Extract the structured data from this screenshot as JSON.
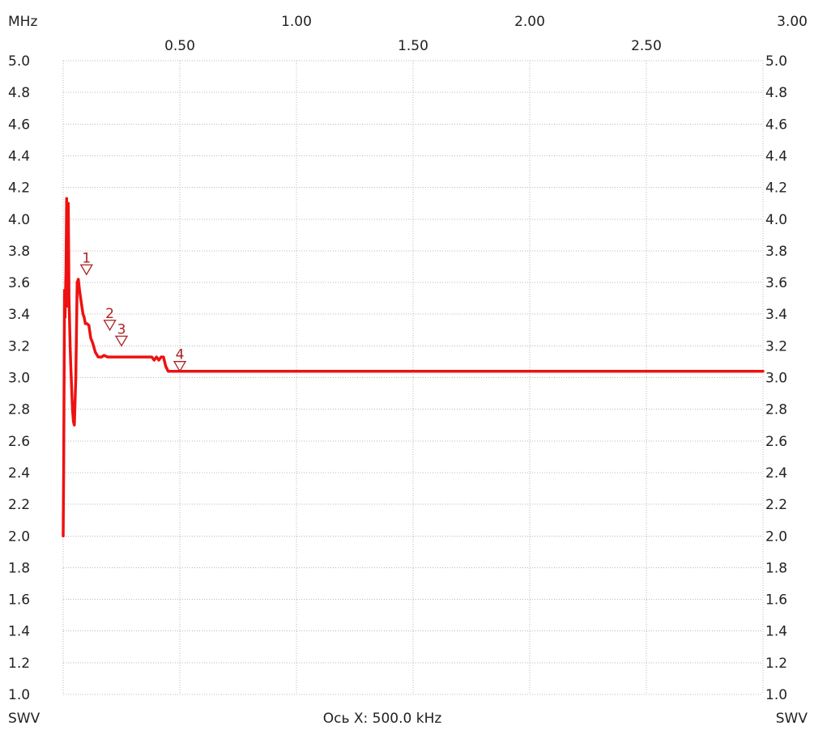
{
  "chart_data": {
    "type": "line",
    "x_unit_label": "MHz",
    "x_axis_note": "Ось X: 500.0 kHz",
    "ylabel_left": "SWV",
    "ylabel_right": "SWV",
    "xlim": [
      0.0,
      3.0
    ],
    "ylim": [
      1.0,
      5.0
    ],
    "grid": true,
    "x_ticks_top_row": [
      "1.00",
      "2.00",
      "3.00"
    ],
    "x_ticks_bottom_row": [
      "0.50",
      "1.50",
      "2.50"
    ],
    "y_ticks": [
      "5.0",
      "4.8",
      "4.6",
      "4.4",
      "4.2",
      "4.0",
      "3.8",
      "3.6",
      "3.4",
      "3.2",
      "3.0",
      "2.8",
      "2.6",
      "2.4",
      "2.2",
      "2.0",
      "1.8",
      "1.6",
      "1.4",
      "1.2",
      "1.0"
    ],
    "trace_color": "#ee1111",
    "marker_color": "#aa2222",
    "series": [
      {
        "x": [
          0.0,
          0.002,
          0.006,
          0.008,
          0.012,
          0.015,
          0.018,
          0.022,
          0.025,
          0.03,
          0.032,
          0.037,
          0.04,
          0.044,
          0.048,
          0.054,
          0.06,
          0.065,
          0.07,
          0.075,
          0.08,
          0.085,
          0.09,
          0.095,
          0.097,
          0.102,
          0.11,
          0.118,
          0.126,
          0.138,
          0.15,
          0.165,
          0.175,
          0.19,
          0.2,
          0.21,
          0.22,
          0.24,
          0.26,
          0.28,
          0.3,
          0.32,
          0.34,
          0.36,
          0.38,
          0.39,
          0.4,
          0.41,
          0.42,
          0.43,
          0.44,
          0.45,
          0.47,
          0.5,
          0.7,
          1.0,
          1.5,
          2.0,
          2.5,
          3.0
        ],
        "y": [
          2.0,
          2.42,
          3.55,
          3.38,
          3.68,
          4.13,
          3.45,
          4.1,
          3.5,
          3.2,
          3.1,
          2.9,
          2.8,
          2.72,
          2.7,
          3.0,
          3.6,
          3.62,
          3.55,
          3.5,
          3.45,
          3.4,
          3.38,
          3.34,
          3.34,
          3.34,
          3.33,
          3.25,
          3.22,
          3.16,
          3.13,
          3.13,
          3.14,
          3.13,
          3.13,
          3.13,
          3.13,
          3.13,
          3.13,
          3.13,
          3.13,
          3.13,
          3.13,
          3.13,
          3.13,
          3.11,
          3.13,
          3.11,
          3.13,
          3.13,
          3.07,
          3.04,
          3.04,
          3.04,
          3.04,
          3.04,
          3.04,
          3.04,
          3.04,
          3.04
        ]
      }
    ],
    "markers": [
      {
        "label": "1",
        "x": 0.1,
        "y": 3.65
      },
      {
        "label": "2",
        "x": 0.2,
        "y": 3.3
      },
      {
        "label": "3",
        "x": 0.25,
        "y": 3.2
      },
      {
        "label": "4",
        "x": 0.5,
        "y": 3.04
      }
    ]
  }
}
